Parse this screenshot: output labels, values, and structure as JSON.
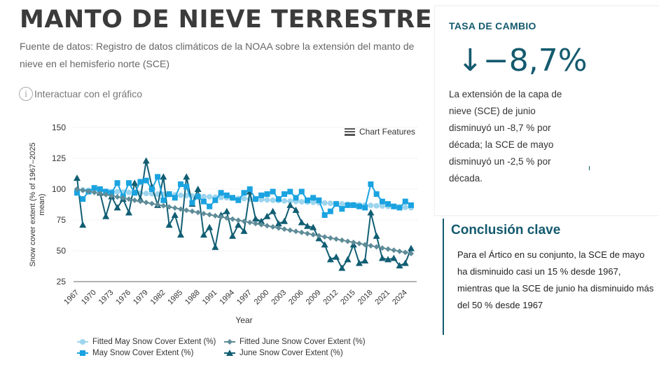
{
  "header": {
    "title": "MANTO DE NIEVE TERRESTRE",
    "subtitle": "Fuente de datos: Registro de datos climáticos de la NOAA sobre la extensión del manto de nieve en el hemisferio norte (SCE)",
    "interact_label": "Interactuar con el gráfico",
    "info_icon": "i"
  },
  "rate_card": {
    "title": "TASA DE CAMBIO",
    "value": "↓−8,7%",
    "text": "La extensión de la capa de nieve (SCE) de junio disminuyó un -8,7 % por década; la SCE de mayo disminuyó un -2,5 % por década."
  },
  "conclusion": {
    "title": "Conclusión clave",
    "text": "Para el Ártico en su conjunto, la SCE de mayo ha disminuido casi un 15 % desde 1967, mientras que la SCE de junio ha disminuido más del 50 % desde 1967"
  },
  "chart_features_label": "Chart Features",
  "colors": {
    "fitted_may": "#9dd5ee",
    "may": "#1aa3e0",
    "fitted_june": "#5f8c98",
    "june": "#115e73",
    "accent": "#145a6e"
  },
  "chart_data": {
    "type": "line",
    "title": "",
    "xlabel": "Year",
    "ylabel": "Snow cover extent (% of 1967–2025 mean)",
    "ylim": [
      25,
      150
    ],
    "yticks": [
      25,
      50,
      75,
      100,
      125,
      150
    ],
    "xticks": [
      1967,
      1970,
      1973,
      1976,
      1979,
      1982,
      1985,
      1988,
      1991,
      1994,
      1997,
      2000,
      2003,
      2006,
      2009,
      2012,
      2015,
      2018,
      2021,
      2024
    ],
    "grid": true,
    "legend_position": "bottom",
    "x": [
      1967,
      1968,
      1969,
      1970,
      1971,
      1972,
      1973,
      1974,
      1975,
      1976,
      1977,
      1978,
      1979,
      1980,
      1981,
      1982,
      1983,
      1984,
      1985,
      1986,
      1987,
      1988,
      1989,
      1990,
      1991,
      1992,
      1993,
      1994,
      1995,
      1996,
      1997,
      1998,
      1999,
      2000,
      2001,
      2002,
      2003,
      2004,
      2005,
      2006,
      2007,
      2008,
      2009,
      2010,
      2011,
      2012,
      2013,
      2014,
      2015,
      2016,
      2017,
      2018,
      2019,
      2020,
      2021,
      2022,
      2023,
      2024,
      2025
    ],
    "series": [
      {
        "name": "Fitted May Snow Cover Extent (%)",
        "marker": "circle",
        "values": [
          99.5,
          99.3,
          99.0,
          98.8,
          98.5,
          98.3,
          98.0,
          97.8,
          97.5,
          97.3,
          97.0,
          96.8,
          96.5,
          96.3,
          96.0,
          95.8,
          95.5,
          95.3,
          95.0,
          94.8,
          94.5,
          94.3,
          94.0,
          93.8,
          93.5,
          93.3,
          93.0,
          92.8,
          92.5,
          92.3,
          92.0,
          91.8,
          91.5,
          91.3,
          91.0,
          90.8,
          90.5,
          90.3,
          90.0,
          89.8,
          89.5,
          89.3,
          89.0,
          88.8,
          88.5,
          88.3,
          88.0,
          87.8,
          87.5,
          87.3,
          87.0,
          86.8,
          86.5,
          86.3,
          86.0,
          85.8,
          85.5,
          85.3,
          85.0
        ]
      },
      {
        "name": "June Snow Cover Extent (%)",
        "marker": "triangle",
        "values": [
          109,
          71,
          null,
          null,
          97,
          78,
          94,
          85,
          92,
          81,
          105,
          92,
          123,
          102,
          87,
          110,
          71,
          79,
          63,
          110,
          88,
          100,
          63,
          69,
          53,
          79,
          82,
          62,
          71,
          66,
          98,
          76,
          74,
          78,
          82,
          72,
          74,
          87,
          83,
          73,
          70,
          69,
          60,
          55,
          43,
          45,
          36,
          43,
          55,
          40,
          42,
          81,
          62,
          44,
          43,
          44,
          38,
          40,
          52
        ]
      },
      {
        "name": "May Snow Cover Extent (%)",
        "marker": "square",
        "values": [
          97,
          92,
          98,
          101,
          100,
          98,
          97,
          105,
          94,
          105,
          97,
          106,
          107,
          100,
          110,
          91,
          96,
          93,
          104,
          102,
          89,
          94,
          90,
          86,
          91,
          97,
          95,
          93,
          91,
          97,
          100,
          92,
          95,
          96,
          98,
          92,
          96,
          98,
          93,
          98,
          91,
          93,
          91,
          79,
          82,
          88,
          84,
          87,
          87,
          86,
          85,
          104,
          96,
          90,
          88,
          86,
          85,
          90,
          87
        ]
      },
      {
        "name": "Fitted June Snow Cover Extent (%)",
        "marker": "diamond",
        "values": [
          100,
          99.1,
          98.2,
          97.3,
          96.4,
          95.5,
          94.6,
          93.7,
          92.8,
          91.9,
          91.0,
          90.1,
          89.2,
          88.3,
          87.4,
          86.5,
          85.6,
          84.7,
          83.8,
          82.9,
          82.0,
          81.1,
          80.2,
          79.3,
          78.4,
          77.5,
          76.6,
          75.7,
          74.8,
          73.9,
          73.0,
          72.1,
          71.2,
          70.3,
          69.4,
          68.5,
          67.6,
          66.7,
          65.8,
          64.9,
          64.0,
          63.1,
          62.2,
          61.3,
          60.4,
          59.5,
          58.6,
          57.7,
          56.8,
          55.9,
          55.0,
          54.1,
          53.2,
          52.3,
          51.4,
          50.5,
          49.6,
          48.7,
          47.8
        ]
      }
    ]
  },
  "legend": [
    {
      "label": "Fitted May Snow Cover Extent (%)",
      "marker": "circle"
    },
    {
      "label": "Fitted June Snow Cover Extent (%)",
      "marker": "diamond"
    },
    {
      "label": "May Snow Cover Extent (%)",
      "marker": "square"
    },
    {
      "label": "June Snow Cover Extent (%)",
      "marker": "triangle"
    }
  ]
}
